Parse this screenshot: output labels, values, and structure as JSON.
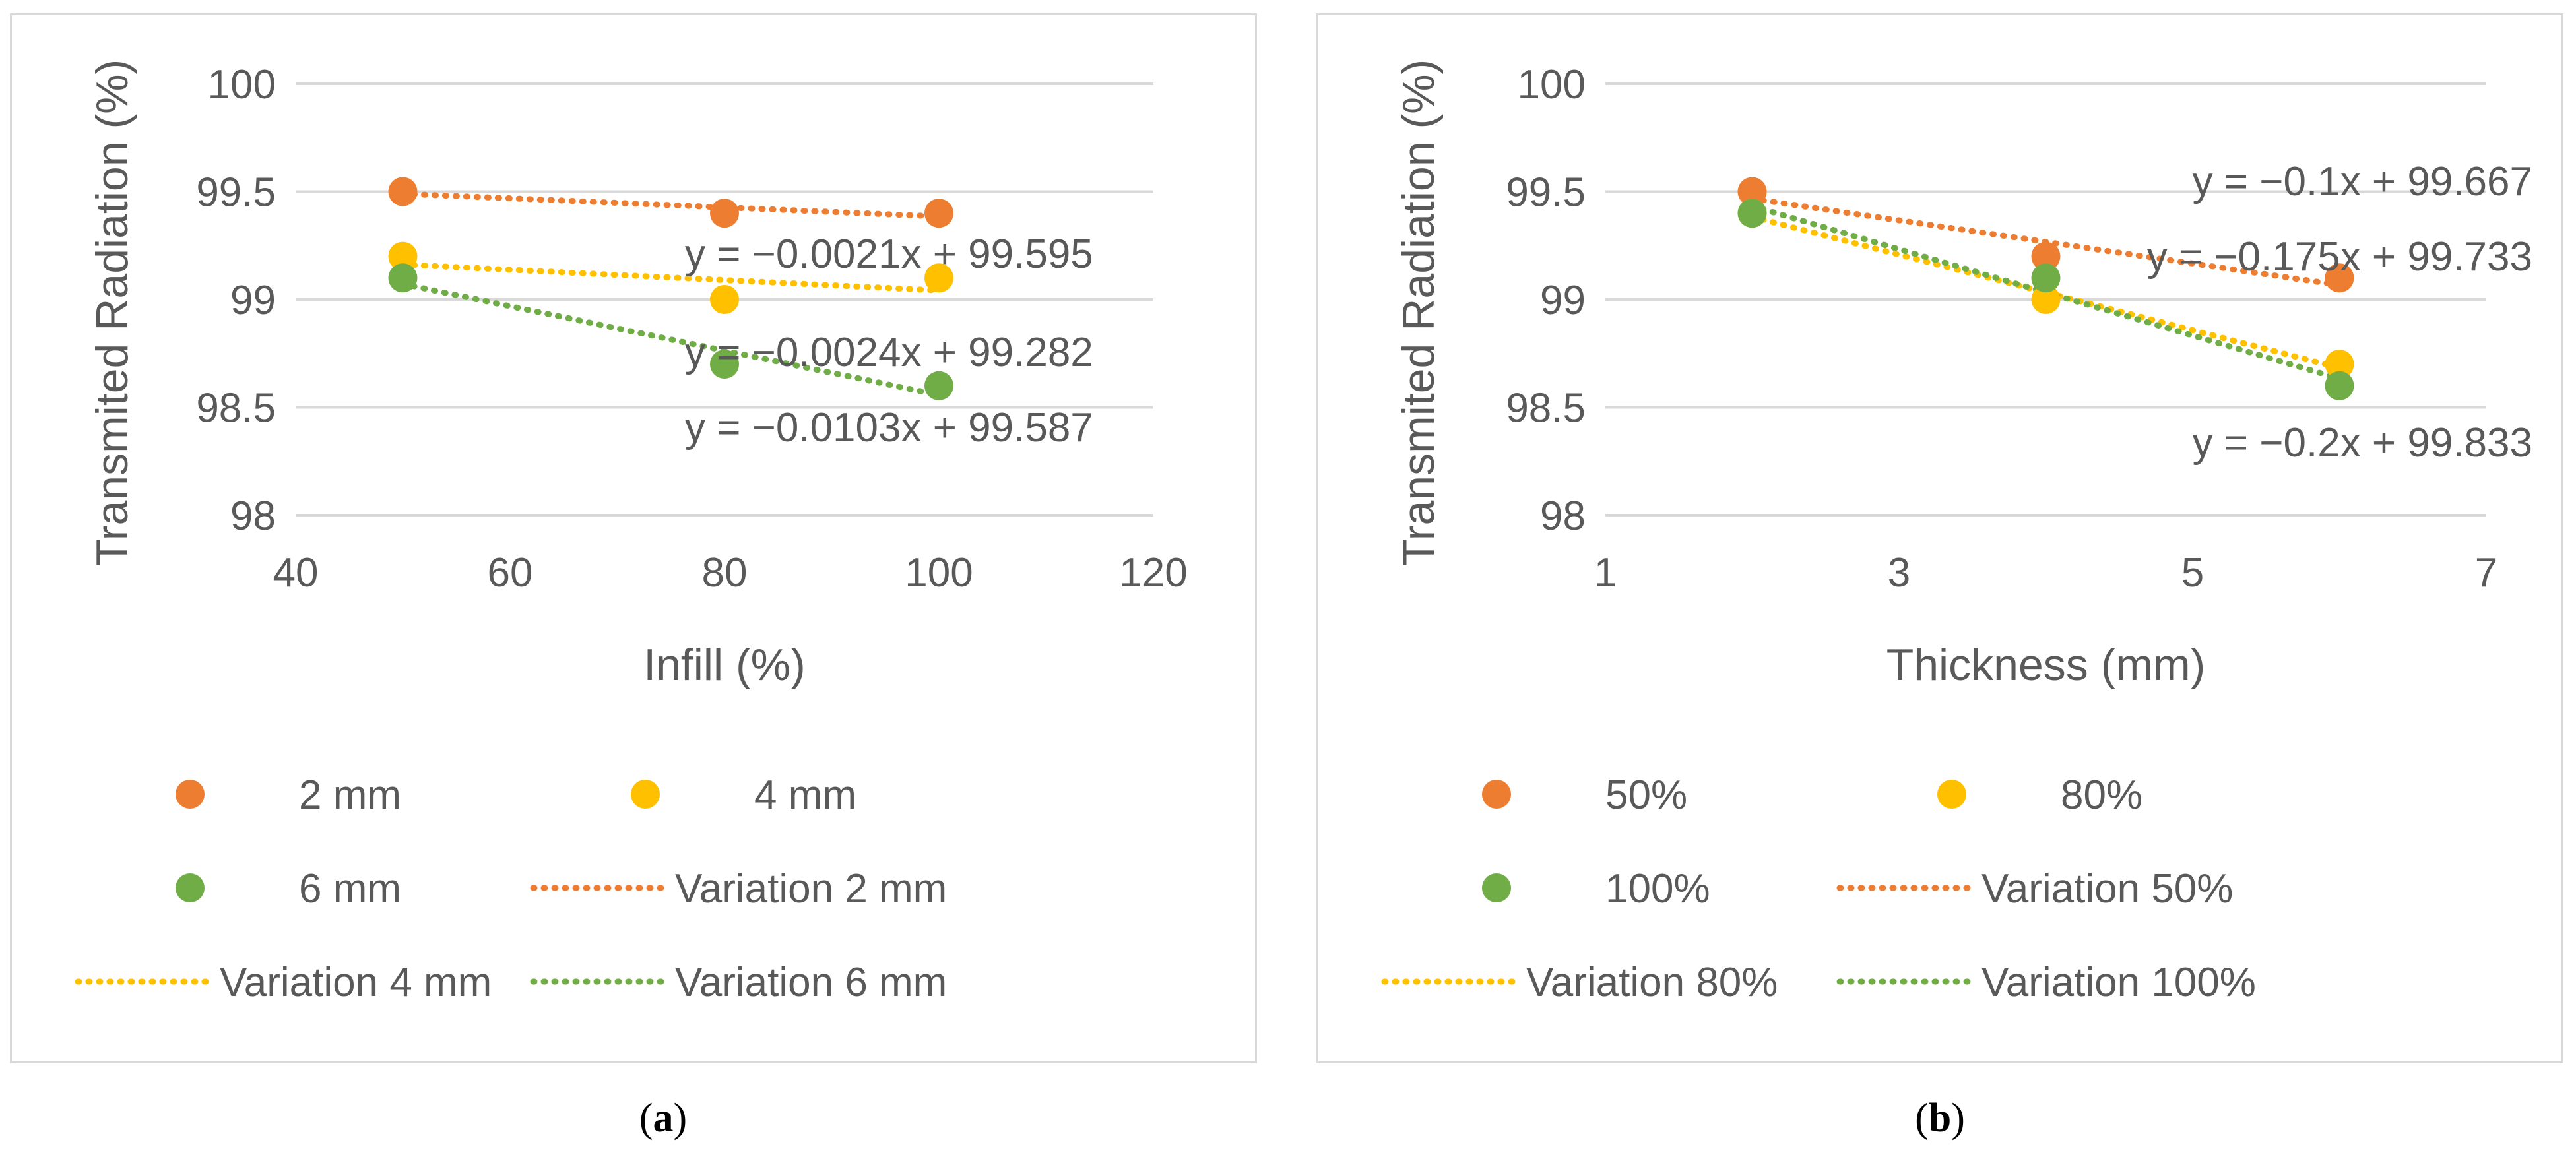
{
  "colors": {
    "orange": "#ED7D31",
    "yellow": "#FFC000",
    "green": "#70AD47",
    "grid": "#d9d9d9",
    "text": "#595959"
  },
  "chart_data": [
    {
      "id": "a",
      "type": "scatter",
      "sublabel": "a",
      "xlabel": "Infill (%)",
      "ylabel": "Transmited Radiation (%)",
      "xlim": [
        40,
        120
      ],
      "xticks": [
        40,
        60,
        80,
        100,
        120
      ],
      "ylim": [
        98,
        100
      ],
      "yticks": [
        98,
        98.5,
        99,
        99.5,
        100
      ],
      "grid": true,
      "legend_position": "bottom",
      "series": [
        {
          "name": "2 mm",
          "color": "#ED7D31",
          "x": [
            50,
            80,
            100
          ],
          "y": [
            99.5,
            99.4,
            99.4
          ]
        },
        {
          "name": "4 mm",
          "color": "#FFC000",
          "x": [
            50,
            80,
            100
          ],
          "y": [
            99.2,
            99.0,
            99.1
          ]
        },
        {
          "name": "6 mm",
          "color": "#70AD47",
          "x": [
            50,
            80,
            100
          ],
          "y": [
            99.1,
            98.7,
            98.6
          ]
        }
      ],
      "trendlines": [
        {
          "name": "Variation 2 mm",
          "color": "#ED7D31",
          "slope": -0.0021,
          "intercept": 99.595,
          "x_range": [
            50,
            100
          ],
          "equation": "y = −0.0021x + 99.595"
        },
        {
          "name": "Variation 4 mm",
          "color": "#FFC000",
          "slope": -0.0024,
          "intercept": 99.282,
          "x_range": [
            50,
            100
          ],
          "equation": "y = −0.0024x + 99.282"
        },
        {
          "name": "Variation 6 mm",
          "color": "#70AD47",
          "slope": -0.0103,
          "intercept": 99.587,
          "x_range": [
            50,
            100
          ],
          "equation": "y = −0.0103x + 99.587"
        }
      ],
      "legend": [
        "2 mm",
        "4 mm",
        "6 mm",
        "Variation 2 mm",
        "Variation 4 mm",
        "Variation 6 mm"
      ]
    },
    {
      "id": "b",
      "type": "scatter",
      "sublabel": "b",
      "xlabel": "Thickness (mm)",
      "ylabel": "Transmited Radiation (%)",
      "xlim": [
        1,
        7
      ],
      "xticks": [
        1,
        3,
        5,
        7
      ],
      "ylim": [
        98,
        100
      ],
      "yticks": [
        98,
        98.5,
        99,
        99.5,
        100
      ],
      "grid": true,
      "legend_position": "bottom",
      "series": [
        {
          "name": "50%",
          "color": "#ED7D31",
          "x": [
            2,
            4,
            6
          ],
          "y": [
            99.5,
            99.2,
            99.1
          ]
        },
        {
          "name": "80%",
          "color": "#FFC000",
          "x": [
            2,
            4,
            6
          ],
          "y": [
            99.4,
            99.0,
            98.7
          ]
        },
        {
          "name": "100%",
          "color": "#70AD47",
          "x": [
            2,
            4,
            6
          ],
          "y": [
            99.4,
            99.1,
            98.6
          ]
        }
      ],
      "trendlines": [
        {
          "name": "Variation 50%",
          "color": "#ED7D31",
          "slope": -0.1,
          "intercept": 99.667,
          "x_range": [
            2,
            6
          ],
          "equation": "y = −0.1x + 99.667"
        },
        {
          "name": "Variation 80%",
          "color": "#FFC000",
          "slope": -0.175,
          "intercept": 99.733,
          "x_range": [
            2,
            6
          ],
          "equation": "y = −0.175x + 99.733"
        },
        {
          "name": "Variation 100%",
          "color": "#70AD47",
          "slope": -0.2,
          "intercept": 99.833,
          "x_range": [
            2,
            6
          ],
          "equation": "y = −0.2x + 99.833"
        }
      ],
      "legend": [
        "50%",
        "80%",
        "100%",
        "Variation 50%",
        "Variation 80%",
        "Variation 100%"
      ]
    }
  ]
}
